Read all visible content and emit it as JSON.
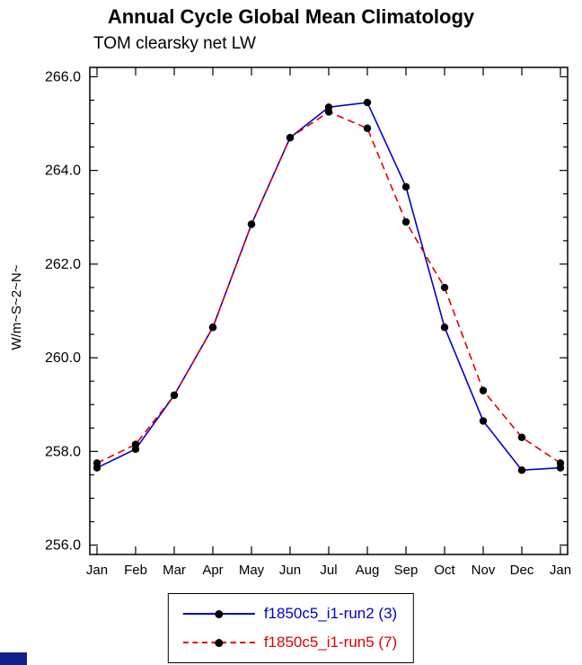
{
  "chart_data": {
    "type": "line",
    "title": "Annual Cycle Global Mean Climatology",
    "subtitle": "TOM clearsky net LW",
    "xlabel": "",
    "ylabel": "W/m~S~2~N~",
    "categories": [
      "Jan",
      "Feb",
      "Mar",
      "Apr",
      "May",
      "Jun",
      "Jul",
      "Aug",
      "Sep",
      "Oct",
      "Nov",
      "Dec",
      "Jan"
    ],
    "ylim": [
      256.0,
      266.0
    ],
    "ylim_draw": [
      255.8,
      266.2
    ],
    "ytick_step": 2.0,
    "ytick_minor_step": 0.5,
    "grid": false,
    "legend_position": "bottom",
    "marker_color": "#000000",
    "series": [
      {
        "name": "f1850c5_i1-run2 (3)",
        "color": "#0000d2",
        "style": "solid",
        "values": [
          257.65,
          258.05,
          259.2,
          260.65,
          262.85,
          264.7,
          265.35,
          265.45,
          263.65,
          260.65,
          258.65,
          257.6,
          257.65
        ]
      },
      {
        "name": "f1850c5_i1-run5 (7)",
        "color": "#e00000",
        "style": "dashed",
        "values": [
          257.75,
          258.15,
          259.2,
          260.65,
          262.85,
          264.7,
          265.25,
          264.9,
          262.9,
          261.5,
          259.3,
          258.3,
          257.75
        ]
      }
    ]
  },
  "logo": {
    "color": "#13208a"
  }
}
